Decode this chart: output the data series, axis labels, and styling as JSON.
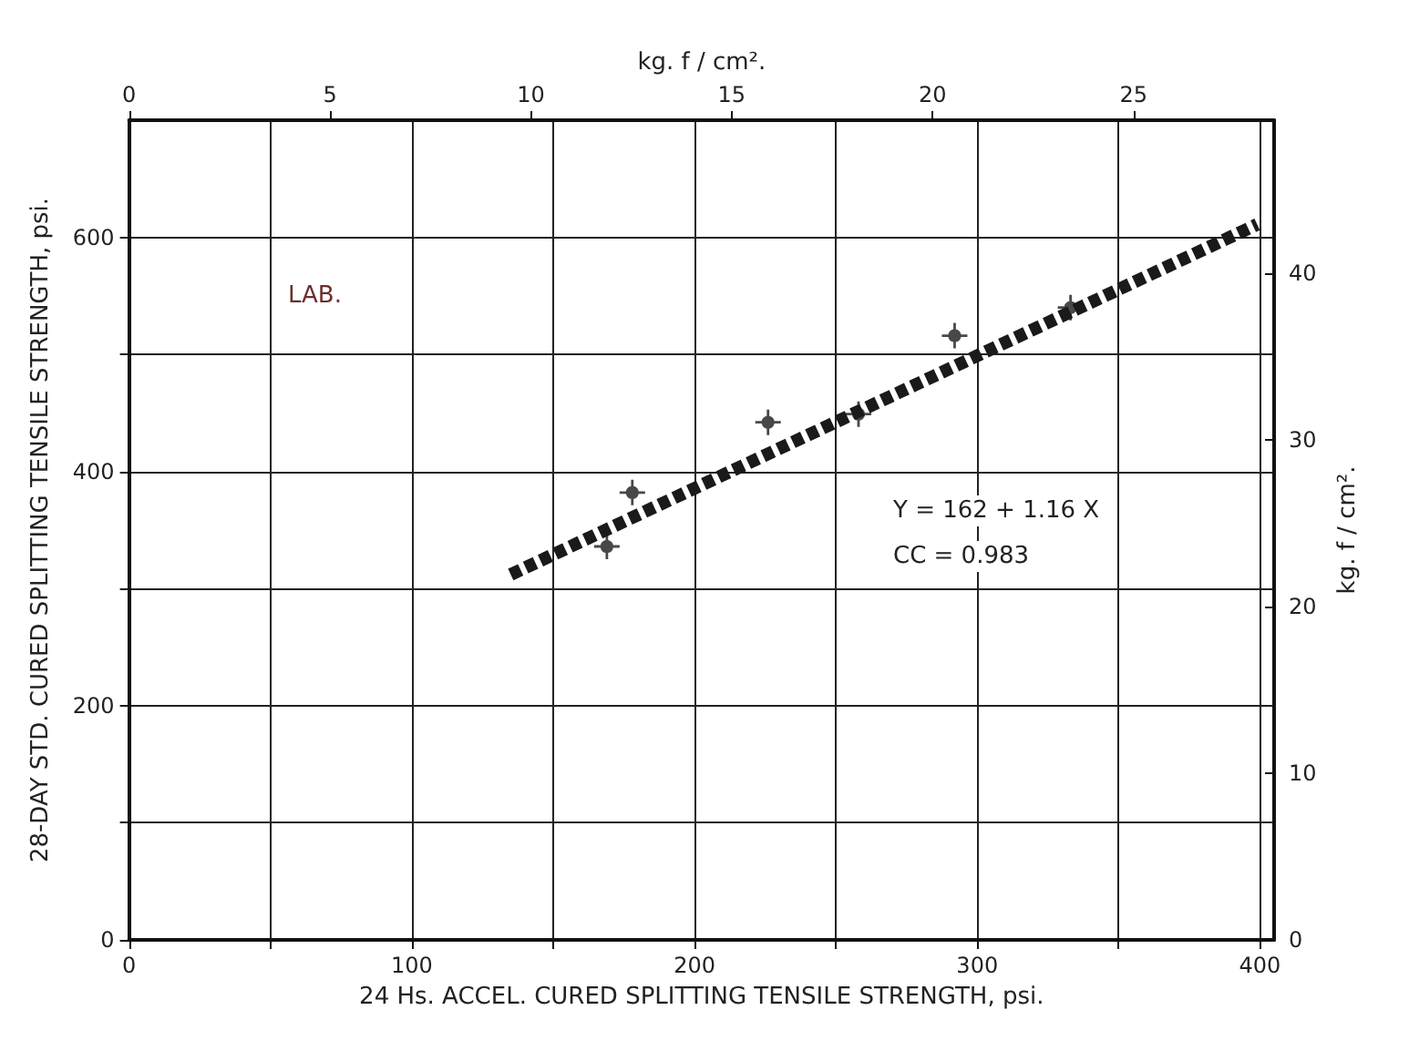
{
  "chart_data": {
    "type": "scatter",
    "xlabel": "24 Hs. ACCEL. CURED SPLITTING TENSILE STRENGTH, psi.",
    "ylabel": "28-DAY STD. CURED SPLITTING TENSILE STRENGTH, psi.",
    "x2label": "kg. f / cm².",
    "y2label": "kg. f / cm².",
    "xlim": [
      0,
      405
    ],
    "xticks": [
      0,
      {
        "value": 50,
        "label": null
      },
      100,
      {
        "value": 150,
        "label": null
      },
      200,
      {
        "value": 250,
        "label": null
      },
      300,
      {
        "value": 350,
        "label": null
      },
      400
    ],
    "ylim": [
      0,
      700
    ],
    "yticks": [
      0,
      {
        "value": 100,
        "label": null
      },
      200,
      {
        "value": 300,
        "label": null
      },
      400,
      {
        "value": 500,
        "label": null
      },
      600
    ],
    "x2lim": [
      0,
      28.5
    ],
    "x2ticks": [
      0,
      5,
      10,
      15,
      20,
      25
    ],
    "y2lim": [
      0,
      49.2
    ],
    "y2ticks": [
      0,
      10,
      20,
      30,
      40
    ],
    "grid": true,
    "series": [
      {
        "type": "scatter",
        "color": "#1a1a1a",
        "marker": "cross",
        "x": [
          169,
          178,
          226,
          258,
          292,
          333
        ],
        "values": [
          336,
          382,
          442,
          449,
          516,
          540
        ]
      },
      {
        "type": "line",
        "color": "#1a1a1a",
        "line_style": "dashed",
        "marker": "none",
        "x": [
          135,
          399
        ],
        "values": [
          312,
          611
        ]
      }
    ],
    "annotations": [
      "LAB.",
      "Y = 162 + 1.16 X",
      "CC = 0.983"
    ]
  }
}
